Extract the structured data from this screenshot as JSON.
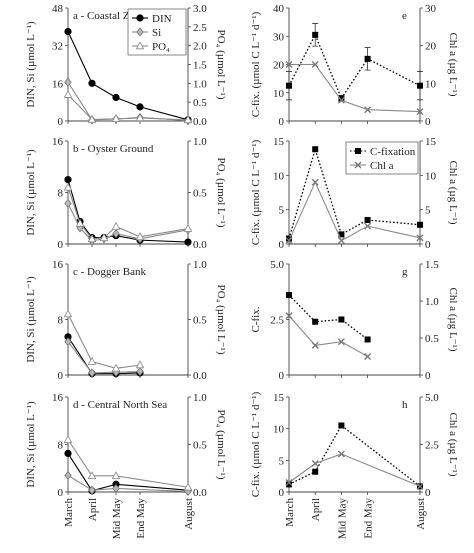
{
  "chart_data": [
    {
      "id": "a",
      "type": "line",
      "title": "a - Coastal Zone",
      "ylabel": "DIN, Si (µmol L⁻¹)",
      "y2label": "PO₄ (µmol L⁻¹)",
      "ylim": [
        0,
        48
      ],
      "yticks": [
        0,
        16,
        32,
        48
      ],
      "y2lim": [
        0,
        3.0
      ],
      "y2ticks": [
        "0.0",
        "0.5",
        "1.0",
        "1.5",
        "2.0",
        "2.5",
        "3.0"
      ],
      "legend": [
        "DIN",
        "Si",
        "PO₄"
      ],
      "legend_position": "top-right",
      "series": [
        {
          "name": "DIN",
          "marker": "circle",
          "style": "solid",
          "color": "#000000",
          "axis": "left",
          "x": [
            0,
            1,
            2,
            3,
            5
          ],
          "y": [
            38,
            16,
            10,
            6,
            0.5
          ]
        },
        {
          "name": "Si",
          "marker": "diamond",
          "style": "solid",
          "color": "#999999",
          "axis": "left",
          "x": [
            0,
            1,
            2,
            3,
            5
          ],
          "y": [
            16.5,
            0.5,
            0.8,
            1.5,
            0.2
          ]
        },
        {
          "name": "PO₄",
          "marker": "triangle",
          "style": "solid",
          "color": "#aaaaaa",
          "axis": "right",
          "x": [
            0,
            1,
            2,
            3,
            5
          ],
          "y": [
            0.7,
            0.04,
            0.06,
            0.08,
            0.03
          ]
        }
      ]
    },
    {
      "id": "b",
      "type": "line",
      "title": "b - Oyster Ground",
      "ylabel": "DIN, Si (µmol L⁻¹)",
      "y2label": "PO₄ (µmol L⁻¹)",
      "ylim": [
        0,
        16
      ],
      "yticks": [
        0,
        8,
        16
      ],
      "y2lim": [
        0,
        1.0
      ],
      "y2ticks": [
        "0.0",
        "0.5",
        "1.0"
      ],
      "series": [
        {
          "name": "DIN",
          "marker": "circle",
          "style": "solid",
          "color": "#000000",
          "axis": "left",
          "x": [
            0,
            0.5,
            1,
            1.5,
            2,
            3,
            5
          ],
          "y": [
            10,
            3.5,
            1.0,
            1.0,
            1.3,
            0.6,
            0.3
          ]
        },
        {
          "name": "Si",
          "marker": "diamond",
          "style": "solid",
          "color": "#999999",
          "axis": "left",
          "x": [
            0,
            0.5,
            1,
            1.5,
            2,
            3,
            5
          ],
          "y": [
            6.3,
            2.5,
            0.5,
            0.8,
            1.6,
            0.8,
            2.2
          ]
        },
        {
          "name": "PO₄",
          "marker": "triangle",
          "style": "solid",
          "color": "#aaaaaa",
          "axis": "right",
          "x": [
            0,
            0.5,
            1,
            1.5,
            2,
            3,
            5
          ],
          "y": [
            0.55,
            0.2,
            0.05,
            0.06,
            0.17,
            0.07,
            0.15
          ]
        }
      ]
    },
    {
      "id": "c",
      "type": "line",
      "title": "c - Dogger Bank",
      "ylabel": "DIN, Si (µmol L⁻¹)",
      "y2label": "PO₄ (µmol L⁻¹)",
      "ylim": [
        0,
        16
      ],
      "yticks": [
        0,
        8,
        16
      ],
      "y2lim": [
        0,
        1.0
      ],
      "y2ticks": [
        "0.0",
        "0.5",
        "1.0"
      ],
      "series": [
        {
          "name": "DIN",
          "marker": "circle",
          "style": "solid",
          "color": "#000000",
          "axis": "left",
          "x": [
            0,
            1,
            2,
            3
          ],
          "y": [
            5.5,
            0.2,
            0.2,
            0.3
          ]
        },
        {
          "name": "Si",
          "marker": "diamond",
          "style": "solid",
          "color": "#999999",
          "axis": "left",
          "x": [
            0,
            1,
            2,
            3
          ],
          "y": [
            4.8,
            0.3,
            0.4,
            0.5
          ]
        },
        {
          "name": "PO₄",
          "marker": "triangle",
          "style": "solid",
          "color": "#aaaaaa",
          "axis": "right",
          "x": [
            0,
            1,
            2,
            3
          ],
          "y": [
            0.55,
            0.12,
            0.06,
            0.09
          ]
        }
      ]
    },
    {
      "id": "d",
      "type": "line",
      "title": "d - Central North Sea",
      "ylabel": "DIN, Si (µmol L⁻¹)",
      "y2label": "PO₄ (µmol L⁻¹)",
      "ylim": [
        0,
        16
      ],
      "yticks": [
        0,
        8,
        16
      ],
      "y2lim": [
        0,
        1.0
      ],
      "y2ticks": [
        "0.0",
        "0.5",
        "1.0"
      ],
      "xtick_labels": [
        "March",
        "April",
        "Mid May",
        "End May",
        "August"
      ],
      "series": [
        {
          "name": "DIN",
          "marker": "circle",
          "style": "solid",
          "color": "#000000",
          "axis": "left",
          "x": [
            0,
            1,
            2,
            5
          ],
          "y": [
            6.5,
            0.2,
            1.3,
            0.3
          ]
        },
        {
          "name": "Si",
          "marker": "diamond",
          "style": "solid",
          "color": "#999999",
          "axis": "left",
          "x": [
            0,
            1,
            2,
            5
          ],
          "y": [
            2.8,
            0.3,
            0.6,
            0.1
          ]
        },
        {
          "name": "PO₄",
          "marker": "triangle",
          "style": "solid",
          "color": "#aaaaaa",
          "axis": "right",
          "x": [
            0,
            1,
            2,
            5
          ],
          "y": [
            0.55,
            0.17,
            0.17,
            0.05
          ]
        }
      ]
    },
    {
      "id": "e",
      "type": "line",
      "title": "e",
      "ylabel": "C-fix. (µmol C L⁻¹ d⁻¹)",
      "y2label": "Chl a (µg L⁻¹)",
      "ylim": [
        0,
        40
      ],
      "yticks": [
        0,
        10,
        20,
        30,
        40
      ],
      "y2lim": [
        0,
        30
      ],
      "y2ticks": [
        "0",
        "10",
        "20",
        "30"
      ],
      "series": [
        {
          "name": "C-fixation",
          "marker": "square",
          "style": "dotted",
          "color": "#000000",
          "axis": "left",
          "x": [
            0,
            1,
            2,
            3,
            5
          ],
          "y": [
            12.5,
            30.5,
            8,
            22,
            12.5
          ],
          "err": [
            5,
            4,
            1,
            4,
            5
          ]
        },
        {
          "name": "Chl a",
          "marker": "cross",
          "style": "solid",
          "color": "#777777",
          "axis": "right",
          "x": [
            0,
            1,
            2,
            3,
            5
          ],
          "y": [
            15,
            15,
            5.5,
            3,
            2.5
          ]
        }
      ]
    },
    {
      "id": "f",
      "type": "line",
      "title": "f",
      "ylabel": "C-fix. (µmol C L⁻¹ d⁻¹)",
      "y2label": "Chl a (µg L⁻¹)",
      "ylim": [
        0,
        15
      ],
      "yticks": [
        0,
        5,
        10,
        15
      ],
      "y2lim": [
        0,
        15
      ],
      "y2ticks": [
        "0",
        "5",
        "10",
        "15"
      ],
      "legend": [
        "C-fixation",
        "Chl a"
      ],
      "legend_position": "top-right",
      "series": [
        {
          "name": "C-fixation",
          "marker": "square",
          "style": "dotted",
          "color": "#000000",
          "axis": "left",
          "x": [
            0,
            1,
            2,
            3,
            5
          ],
          "y": [
            0.8,
            13.8,
            1.4,
            3.5,
            2.8
          ]
        },
        {
          "name": "Chl a",
          "marker": "cross",
          "style": "solid",
          "color": "#777777",
          "axis": "right",
          "x": [
            0,
            1,
            2,
            3,
            5
          ],
          "y": [
            0.5,
            9.0,
            0.5,
            2.6,
            0.9
          ]
        }
      ]
    },
    {
      "id": "g",
      "type": "line",
      "title": "g",
      "ylabel": "C-fix.",
      "y2label": "Chl a (µg L⁻¹)",
      "ylim": [
        0,
        5.0
      ],
      "yticks": [
        "0",
        "2.5",
        "5.0"
      ],
      "y2lim": [
        0,
        1.5
      ],
      "y2ticks": [
        "0",
        "0.5",
        "1.0",
        "1.5"
      ],
      "series": [
        {
          "name": "C-fixation",
          "marker": "square",
          "style": "dotted",
          "color": "#000000",
          "axis": "left",
          "x": [
            0,
            1,
            2,
            3
          ],
          "y": [
            3.6,
            2.4,
            2.5,
            1.6
          ]
        },
        {
          "name": "Chl a",
          "marker": "cross",
          "style": "solid",
          "color": "#777777",
          "axis": "right",
          "x": [
            0,
            1,
            2,
            3
          ],
          "y": [
            0.8,
            0.4,
            0.45,
            0.25
          ]
        }
      ]
    },
    {
      "id": "h",
      "type": "line",
      "title": "h",
      "ylabel": "C-fix. (µmol C L⁻¹ d⁻¹)",
      "y2label": "Chl a (µg L⁻¹)",
      "ylim": [
        0,
        15
      ],
      "yticks": [
        0,
        5,
        10,
        15
      ],
      "y2lim": [
        0,
        5.0
      ],
      "y2ticks": [
        "0",
        "2.5",
        "5.0"
      ],
      "xtick_labels": [
        "March",
        "April",
        "Mid May",
        "End May",
        "August"
      ],
      "series": [
        {
          "name": "C-fixation",
          "marker": "square",
          "style": "dotted",
          "color": "#000000",
          "axis": "left",
          "x": [
            0,
            1,
            2,
            5
          ],
          "y": [
            1.2,
            3.2,
            10.5,
            0.9
          ]
        },
        {
          "name": "Chl a",
          "marker": "cross",
          "style": "solid",
          "color": "#777777",
          "axis": "right",
          "x": [
            0,
            1,
            2,
            5
          ],
          "y": [
            0.5,
            1.5,
            2.0,
            0.3
          ]
        }
      ]
    }
  ]
}
